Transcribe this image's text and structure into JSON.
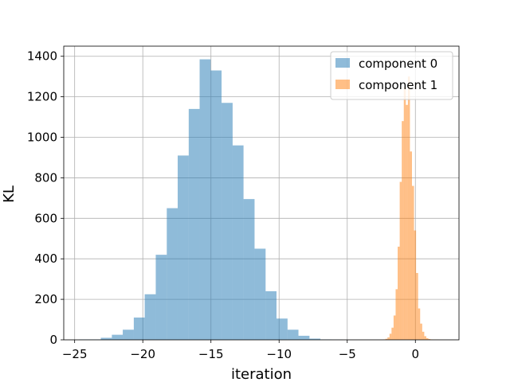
{
  "chart_data": {
    "type": "bar",
    "xlabel": "iteration",
    "ylabel": "KL",
    "xlim": [
      -25.8,
      3.2
    ],
    "ylim": [
      0,
      1450
    ],
    "xticks": [
      -25,
      -20,
      -15,
      -10,
      -5,
      0
    ],
    "xtick_labels": [
      "−25",
      "−20",
      "−15",
      "−10",
      "−5",
      "0"
    ],
    "yticks": [
      0,
      200,
      400,
      600,
      800,
      1000,
      1200,
      1400
    ],
    "ytick_labels": [
      "0",
      "200",
      "400",
      "600",
      "800",
      "1000",
      "1200",
      "1400"
    ],
    "grid": true,
    "legend_position": "top-right",
    "series": [
      {
        "name": "component 0",
        "color": "#1f77b4",
        "opacity": 0.5,
        "bin_edges": [
          -24.65,
          -23.08,
          -22.27,
          -21.47,
          -20.66,
          -19.86,
          -19.05,
          -18.24,
          -17.44,
          -16.63,
          -15.83,
          -15.02,
          -14.22,
          -13.41,
          -12.61,
          -11.8,
          -10.99,
          -10.19,
          -9.38,
          -8.58,
          -7.77,
          -6.97,
          -6.16,
          -5.36
        ],
        "values": [
          2,
          10,
          25,
          50,
          110,
          225,
          420,
          650,
          910,
          1140,
          1385,
          1330,
          1170,
          960,
          695,
          450,
          240,
          105,
          50,
          20,
          6,
          2,
          1
        ]
      },
      {
        "name": "component 1",
        "color": "#ff7f0e",
        "opacity": 0.5,
        "bin_edges": [
          -2.35,
          -2.2,
          -2.05,
          -1.9,
          -1.75,
          -1.6,
          -1.45,
          -1.3,
          -1.15,
          -1.0,
          -0.85,
          -0.7,
          -0.55,
          -0.4,
          -0.25,
          -0.1,
          0.05,
          0.2,
          0.35,
          0.5,
          0.65,
          0.8,
          0.95,
          1.1,
          1.25,
          1.4,
          1.55,
          1.7
        ],
        "values": [
          2,
          5,
          12,
          30,
          60,
          120,
          250,
          460,
          780,
          1080,
          1250,
          1160,
          1300,
          930,
          760,
          540,
          330,
          155,
          80,
          40,
          18,
          8,
          4,
          2,
          1,
          1,
          1
        ]
      }
    ]
  }
}
